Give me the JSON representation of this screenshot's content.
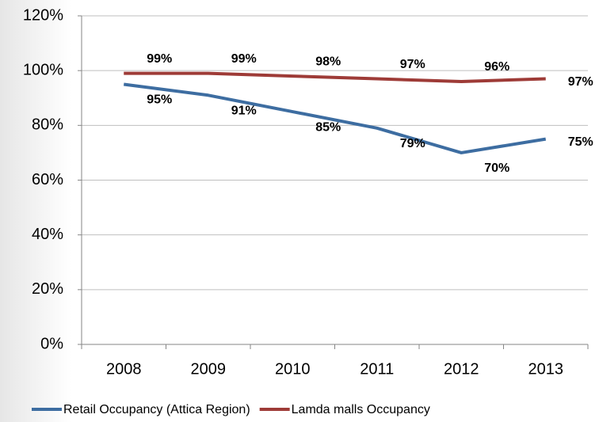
{
  "chart_data": {
    "type": "line",
    "categories": [
      "2008",
      "2009",
      "2010",
      "2011",
      "2012",
      "2013"
    ],
    "series": [
      {
        "name": "Retail Occupancy (Attica Region)",
        "color": "#3d6da1",
        "values": [
          95,
          91,
          85,
          79,
          70,
          75
        ],
        "value_labels": [
          "95%",
          "91%",
          "85%",
          "79%",
          "70%",
          "75%"
        ]
      },
      {
        "name": "Lamda malls Occupancy",
        "color": "#9e3b37",
        "values": [
          99,
          99,
          98,
          97,
          96,
          97
        ],
        "value_labels": [
          "99%",
          "99%",
          "98%",
          "97%",
          "96%",
          "97%"
        ]
      }
    ],
    "ylim": [
      0,
      120
    ],
    "yticks": [
      {
        "value": 0,
        "label": "0%"
      },
      {
        "value": 20,
        "label": "20%"
      },
      {
        "value": 40,
        "label": "40%"
      },
      {
        "value": 60,
        "label": "60%"
      },
      {
        "value": 80,
        "label": "80%"
      },
      {
        "value": 100,
        "label": "100%"
      },
      {
        "value": 120,
        "label": "120%"
      }
    ],
    "grid": true,
    "legend": "bottom"
  }
}
